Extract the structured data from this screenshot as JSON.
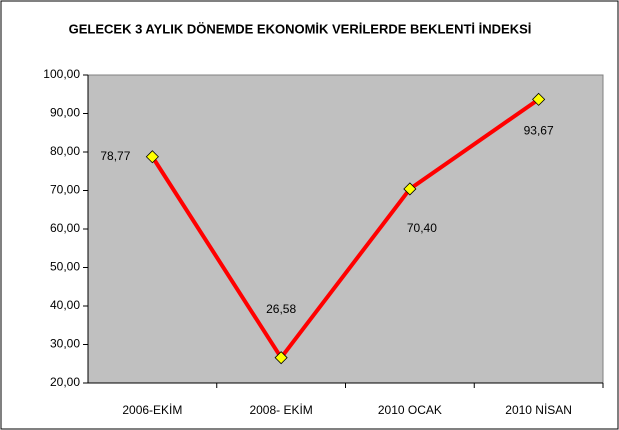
{
  "chart_data": {
    "type": "line",
    "title": "GELECEK 3 AYLIK DÖNEMDE EKONOMİK VERİLERDE BEKLENTİ İNDEKSİ",
    "categories": [
      "2006-EKİM",
      "2008- EKİM",
      "2010 OCAK",
      "2010 NİSAN"
    ],
    "series": [
      {
        "name": null,
        "color": "#ff0000",
        "marker_color": "#ffff00",
        "values": [
          78.77,
          26.58,
          70.4,
          93.67
        ],
        "value_labels": [
          "78,77",
          "26,58",
          "70,40",
          "93,67"
        ]
      }
    ],
    "ylim": [
      20,
      100
    ],
    "yticks": [
      {
        "value": 20,
        "label": "20,00"
      },
      {
        "value": 30,
        "label": "30,00"
      },
      {
        "value": 40,
        "label": "40,00"
      },
      {
        "value": 50,
        "label": "50,00"
      },
      {
        "value": 60,
        "label": "60,00"
      },
      {
        "value": 70,
        "label": "70,00"
      },
      {
        "value": 80,
        "label": "80,00"
      },
      {
        "value": 90,
        "label": "90,00"
      },
      {
        "value": 100,
        "label": "100,00"
      }
    ],
    "plot_background": "#c0c0c0",
    "grid": false
  }
}
